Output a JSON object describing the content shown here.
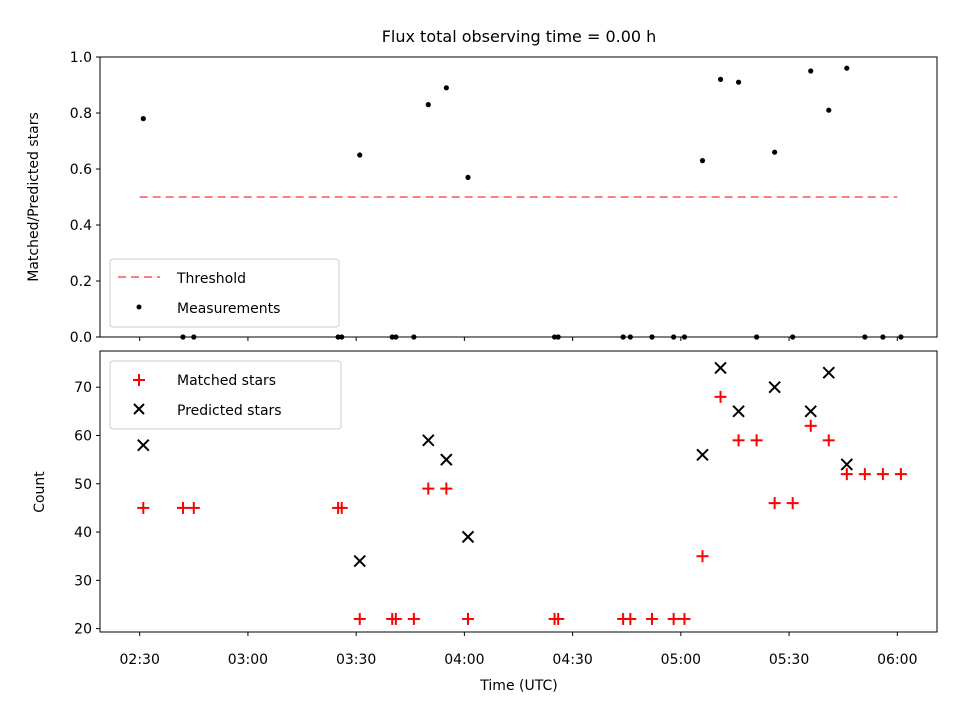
{
  "figure": {
    "title": "Flux total observing time = 0.00 h",
    "xlabel": "Time (UTC)"
  },
  "chart_data": [
    {
      "type": "scatter",
      "panel": "top",
      "ylabel": "Matched/Predicted stars",
      "xlim": [
        "02:19",
        "06:11"
      ],
      "ylim": [
        0,
        1.0
      ],
      "yticks": [
        "0.0",
        "0.2",
        "0.4",
        "0.6",
        "0.8",
        "1.0"
      ],
      "grid": false,
      "legend_placement": "lower-left",
      "threshold": {
        "name": "Threshold",
        "value": 0.5,
        "x_start": "02:30",
        "x_end": "06:00",
        "color": "#ff7f7f"
      },
      "series": [
        {
          "name": "Measurements",
          "color": "#000000",
          "points": [
            {
              "x": "02:31",
              "y": 0.78
            },
            {
              "x": "02:42",
              "y": 0.0
            },
            {
              "x": "02:45",
              "y": 0.0
            },
            {
              "x": "03:25",
              "y": 0.0
            },
            {
              "x": "03:26",
              "y": 0.0
            },
            {
              "x": "03:31",
              "y": 0.65
            },
            {
              "x": "03:40",
              "y": 0.0
            },
            {
              "x": "03:41",
              "y": 0.0
            },
            {
              "x": "03:46",
              "y": 0.0
            },
            {
              "x": "03:50",
              "y": 0.83
            },
            {
              "x": "03:55",
              "y": 0.89
            },
            {
              "x": "04:01",
              "y": 0.57
            },
            {
              "x": "04:25",
              "y": 0.0
            },
            {
              "x": "04:26",
              "y": 0.0
            },
            {
              "x": "04:44",
              "y": 0.0
            },
            {
              "x": "04:46",
              "y": 0.0
            },
            {
              "x": "04:52",
              "y": 0.0
            },
            {
              "x": "04:58",
              "y": 0.0
            },
            {
              "x": "05:01",
              "y": 0.0
            },
            {
              "x": "05:06",
              "y": 0.63
            },
            {
              "x": "05:11",
              "y": 0.92
            },
            {
              "x": "05:16",
              "y": 0.91
            },
            {
              "x": "05:21",
              "y": 0.0
            },
            {
              "x": "05:26",
              "y": 0.66
            },
            {
              "x": "05:31",
              "y": 0.0
            },
            {
              "x": "05:36",
              "y": 0.95
            },
            {
              "x": "05:41",
              "y": 0.81
            },
            {
              "x": "05:46",
              "y": 0.96
            },
            {
              "x": "05:51",
              "y": 0.0
            },
            {
              "x": "05:56",
              "y": 0.0
            },
            {
              "x": "06:01",
              "y": 0.0
            }
          ]
        }
      ]
    },
    {
      "type": "scatter",
      "panel": "bottom",
      "ylabel": "Count",
      "xlabel": "Time (UTC)",
      "xlim": [
        "02:19",
        "06:11"
      ],
      "ylim": [
        19.3,
        77.5
      ],
      "yticks": [
        "20",
        "30",
        "40",
        "50",
        "60",
        "70"
      ],
      "xticks": [
        "02:30",
        "03:00",
        "03:30",
        "04:00",
        "04:30",
        "05:00",
        "05:30",
        "06:00"
      ],
      "grid": false,
      "legend_placement": "upper-left",
      "series": [
        {
          "name": "Matched stars",
          "marker": "plus",
          "color": "#ff0000",
          "points": [
            {
              "x": "02:31",
              "y": 45
            },
            {
              "x": "02:42",
              "y": 45
            },
            {
              "x": "02:45",
              "y": 45
            },
            {
              "x": "03:25",
              "y": 45
            },
            {
              "x": "03:26",
              "y": 45
            },
            {
              "x": "03:31",
              "y": 22
            },
            {
              "x": "03:40",
              "y": 22
            },
            {
              "x": "03:41",
              "y": 22
            },
            {
              "x": "03:46",
              "y": 22
            },
            {
              "x": "03:50",
              "y": 49
            },
            {
              "x": "03:55",
              "y": 49
            },
            {
              "x": "04:01",
              "y": 22
            },
            {
              "x": "04:25",
              "y": 22
            },
            {
              "x": "04:26",
              "y": 22
            },
            {
              "x": "04:44",
              "y": 22
            },
            {
              "x": "04:46",
              "y": 22
            },
            {
              "x": "04:52",
              "y": 22
            },
            {
              "x": "04:58",
              "y": 22
            },
            {
              "x": "05:01",
              "y": 22
            },
            {
              "x": "05:06",
              "y": 35
            },
            {
              "x": "05:11",
              "y": 68
            },
            {
              "x": "05:16",
              "y": 59
            },
            {
              "x": "05:21",
              "y": 59
            },
            {
              "x": "05:26",
              "y": 46
            },
            {
              "x": "05:31",
              "y": 46
            },
            {
              "x": "05:36",
              "y": 62
            },
            {
              "x": "05:41",
              "y": 59
            },
            {
              "x": "05:46",
              "y": 52
            },
            {
              "x": "05:51",
              "y": 52
            },
            {
              "x": "05:56",
              "y": 52
            },
            {
              "x": "06:01",
              "y": 52
            }
          ]
        },
        {
          "name": "Predicted stars",
          "marker": "x",
          "color": "#000000",
          "points": [
            {
              "x": "02:31",
              "y": 58
            },
            {
              "x": "03:31",
              "y": 34
            },
            {
              "x": "03:50",
              "y": 59
            },
            {
              "x": "03:55",
              "y": 55
            },
            {
              "x": "04:01",
              "y": 39
            },
            {
              "x": "05:06",
              "y": 56
            },
            {
              "x": "05:11",
              "y": 74
            },
            {
              "x": "05:16",
              "y": 65
            },
            {
              "x": "05:26",
              "y": 70
            },
            {
              "x": "05:36",
              "y": 65
            },
            {
              "x": "05:41",
              "y": 73
            },
            {
              "x": "05:46",
              "y": 54
            }
          ]
        }
      ]
    }
  ]
}
